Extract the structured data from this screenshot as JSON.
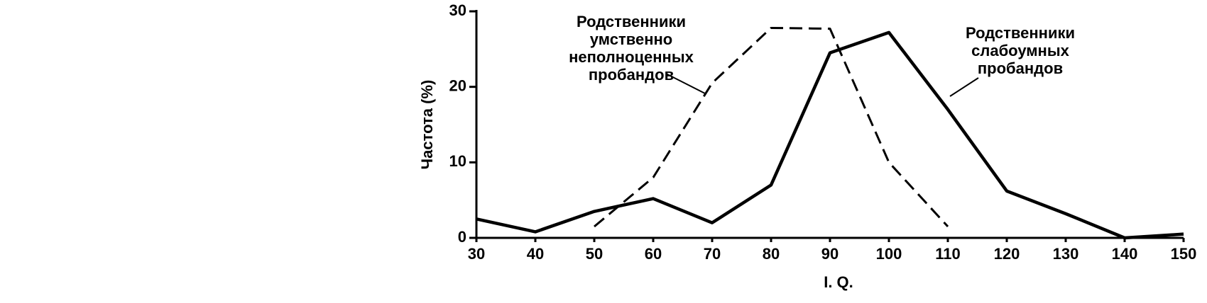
{
  "chart_data": {
    "type": "line",
    "x_label": "I. Q.",
    "y_label": "Частота (%)",
    "x": [
      30,
      40,
      50,
      60,
      70,
      80,
      90,
      100,
      110,
      120,
      130,
      140,
      150
    ],
    "series": [
      {
        "name": "Родственники слабоумных пробандов",
        "color": "#000000",
        "dash": false,
        "values": [
          2.5,
          0.8,
          3.5,
          5.2,
          2,
          7,
          24.5,
          27.2,
          17,
          6.2,
          3.2,
          0,
          0.5
        ]
      },
      {
        "name": "Родственники умственно неполноценных пробандов",
        "color": "#000000",
        "dash": true,
        "values": [
          null,
          null,
          1.5,
          8,
          20.5,
          27.8,
          27.7,
          10,
          1.5,
          null,
          null,
          null,
          null
        ]
      }
    ],
    "xlim": [
      30,
      150
    ],
    "ylim": [
      0,
      30
    ],
    "xticks": [
      30,
      40,
      50,
      60,
      70,
      80,
      90,
      100,
      110,
      120,
      130,
      140,
      150
    ],
    "yticks": [
      0,
      10,
      20,
      30
    ]
  }
}
